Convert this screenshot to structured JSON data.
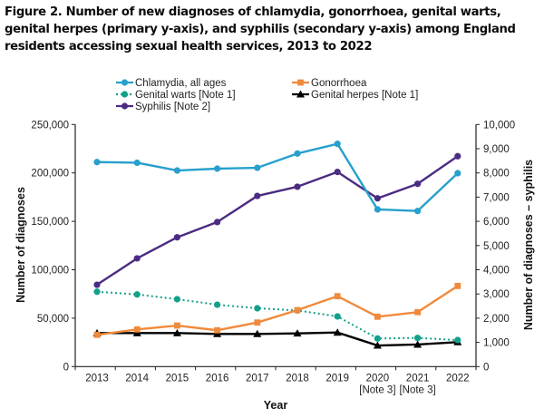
{
  "title": "Figure 2. Number of new diagnoses of chlamydia, gonorrhoea, genital warts, genital herpes (primary y-axis), and syphilis (secondary y-axis) among England residents accessing sexual health services, 2013 to 2022",
  "chart_data": {
    "type": "line",
    "title": "Figure 2. Number of new diagnoses of chlamydia, gonorrhoea, genital warts, genital herpes (primary y-axis), and syphilis (secondary y-axis) among England residents accessing sexual health services, 2013 to 2022",
    "xlabel": "Year",
    "ylabel": "Number of diagnoses",
    "y2label": "Number of diagnoses – syphilis",
    "categories": [
      "2013",
      "2014",
      "2015",
      "2016",
      "2017",
      "2018",
      "2019",
      "2020",
      "2021",
      "2022"
    ],
    "category_notes": [
      "",
      "",
      "",
      "",
      "",
      "",
      "",
      "[Note 3]",
      "[Note 3]",
      ""
    ],
    "ylim": [
      0,
      250000
    ],
    "y2lim": [
      0,
      10000
    ],
    "yticks": [
      "0",
      "50,000",
      "100,000",
      "150,000",
      "200,000",
      "250,000"
    ],
    "ytick_values": [
      0,
      50000,
      100000,
      150000,
      200000,
      250000
    ],
    "y2ticks": [
      "0",
      "1,000",
      "2,000",
      "3,000",
      "4,000",
      "5,000",
      "6,000",
      "7,000",
      "8,000",
      "9,000",
      "10,000"
    ],
    "y2tick_values": [
      0,
      1000,
      2000,
      3000,
      4000,
      5000,
      6000,
      7000,
      8000,
      9000,
      10000
    ],
    "grid": false,
    "legend_position": "top",
    "series": [
      {
        "name": "Chlamydia, all ages",
        "axis": "left",
        "color": "#27a0cc",
        "marker": "circle",
        "dash": "solid",
        "values": [
          211200,
          210500,
          202500,
          204400,
          205300,
          220000,
          230000,
          162300,
          160700,
          199700
        ]
      },
      {
        "name": "Gonorrhoea",
        "axis": "left",
        "color": "#f08a3c",
        "marker": "square",
        "dash": "solid",
        "values": [
          32800,
          38400,
          42400,
          37500,
          45500,
          58300,
          72700,
          51500,
          56200,
          83300
        ]
      },
      {
        "name": "Genital warts [Note 1]",
        "axis": "left",
        "color": "#12a08a",
        "marker": "circle",
        "dash": "dotted",
        "values": [
          77300,
          74500,
          69600,
          63900,
          60200,
          58000,
          51800,
          29000,
          29600,
          27400
        ]
      },
      {
        "name": "Genital herpes [Note 1]",
        "axis": "left",
        "color": "#000000",
        "marker": "triangle",
        "dash": "solid",
        "values": [
          34600,
          34600,
          34600,
          33700,
          33700,
          34300,
          35200,
          21800,
          22800,
          25300
        ]
      },
      {
        "name": "Syphilis [Note 2]",
        "axis": "right",
        "color": "#4b2c82",
        "marker": "circle",
        "dash": "solid",
        "values": [
          3380,
          4470,
          5340,
          5970,
          7050,
          7430,
          8040,
          6950,
          7550,
          8690
        ]
      }
    ]
  }
}
